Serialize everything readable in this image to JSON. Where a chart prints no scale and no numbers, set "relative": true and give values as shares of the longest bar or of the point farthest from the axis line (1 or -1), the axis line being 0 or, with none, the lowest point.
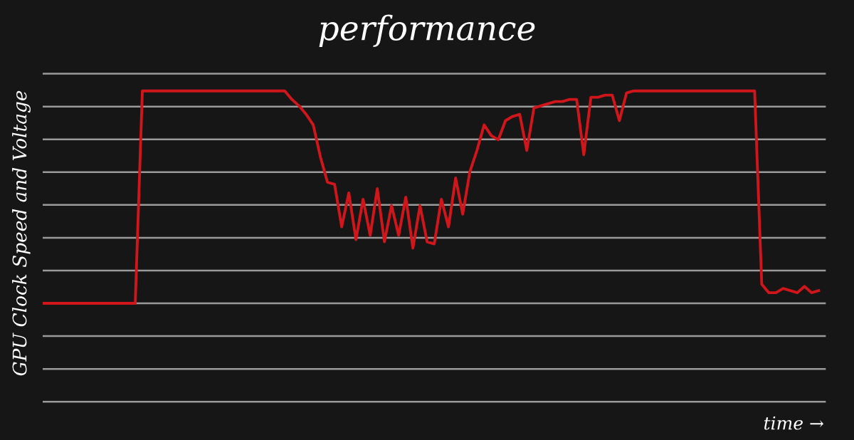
{
  "chart_data": {
    "type": "line",
    "title": "performance",
    "ylabel": "GPU Clock Speed and Voltage",
    "annotations": [
      "time →"
    ],
    "relative": true,
    "grid": "y",
    "legend": false,
    "marker": "none",
    "line_style": "solid",
    "categories": [
      null,
      null,
      null,
      null,
      null,
      null,
      null,
      null,
      null,
      null,
      null,
      null,
      null,
      null,
      null,
      null,
      null,
      null,
      null,
      null,
      null,
      null,
      null,
      null,
      null,
      null,
      null,
      null,
      null,
      null,
      null,
      null,
      null,
      null,
      null,
      null,
      null,
      null,
      null,
      null,
      null,
      null,
      null,
      null,
      null,
      null,
      null,
      null,
      null,
      null,
      null,
      null,
      null,
      null,
      null,
      null,
      null,
      null,
      null,
      null,
      null,
      null,
      null,
      null,
      null,
      null,
      null,
      null,
      null,
      null,
      null,
      null,
      null,
      null,
      null,
      null,
      null,
      null,
      null,
      null,
      null,
      null,
      null,
      null,
      null,
      null,
      null,
      null,
      null,
      null,
      null,
      null,
      null,
      null,
      null,
      null,
      null,
      null,
      null,
      null,
      null,
      null,
      null,
      null,
      null,
      null,
      null,
      null,
      null,
      null
    ],
    "series": [
      {
        "color": "#d0161b",
        "values": [
          0,
          0,
          0,
          0,
          0,
          0,
          0,
          0,
          0,
          0,
          0,
          0,
          0,
          0,
          1,
          1,
          1,
          1,
          1,
          1,
          1,
          1,
          1,
          1,
          1,
          1,
          1,
          1,
          1,
          1,
          1,
          1,
          1,
          1,
          1,
          0.96,
          0.93,
          0.89,
          0.84,
          0.69,
          0.57,
          0.56,
          0.36,
          0.52,
          0.3,
          0.49,
          0.32,
          0.54,
          0.29,
          0.46,
          0.32,
          0.5,
          0.26,
          0.46,
          0.29,
          0.28,
          0.49,
          0.36,
          0.59,
          0.42,
          0.62,
          0.72,
          0.84,
          0.79,
          0.77,
          0.86,
          0.88,
          0.89,
          0.72,
          0.92,
          0.93,
          0.94,
          0.95,
          0.95,
          0.96,
          0.96,
          0.7,
          0.97,
          0.97,
          0.98,
          0.98,
          0.86,
          0.99,
          1,
          1,
          1,
          1,
          1,
          1,
          1,
          1,
          1,
          1,
          1,
          1,
          1,
          1,
          1,
          1,
          1,
          1,
          0.09,
          0.05,
          0.05,
          0.07,
          0.06,
          0.05,
          0.08,
          0.05,
          0.06
        ]
      }
    ]
  }
}
